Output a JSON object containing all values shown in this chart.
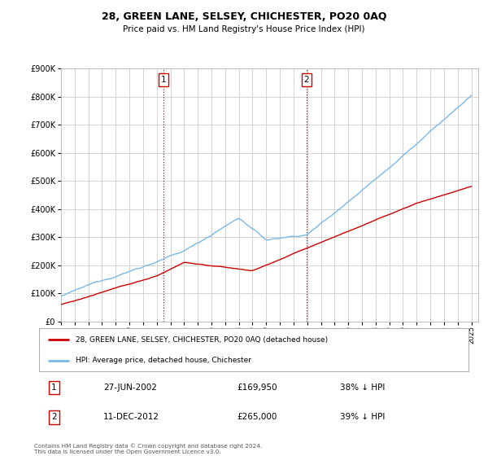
{
  "title": "28, GREEN LANE, SELSEY, CHICHESTER, PO20 0AQ",
  "subtitle": "Price paid vs. HM Land Registry's House Price Index (HPI)",
  "hpi_color": "#7ab8e8",
  "price_color": "#cc0000",
  "vline_color": "#cc0000",
  "background_color": "#ffffff",
  "grid_color": "#cccccc",
  "ylim": [
    0,
    900000
  ],
  "yticks": [
    0,
    100000,
    200000,
    300000,
    400000,
    500000,
    600000,
    700000,
    800000,
    900000
  ],
  "purchase1_date_x": 2002.49,
  "purchase1_label": "1",
  "purchase2_date_x": 2012.95,
  "purchase2_label": "2",
  "legend_house_label": "28, GREEN LANE, SELSEY, CHICHESTER, PO20 0AQ (detached house)",
  "legend_hpi_label": "HPI: Average price, detached house, Chichester",
  "table_row1": [
    "1",
    "27-JUN-2002",
    "£169,950",
    "38% ↓ HPI"
  ],
  "table_row2": [
    "2",
    "11-DEC-2012",
    "£265,000",
    "39% ↓ HPI"
  ],
  "footer": "Contains HM Land Registry data © Crown copyright and database right 2024.\nThis data is licensed under the Open Government Licence v3.0.",
  "xmin": 1995.0,
  "xmax": 2025.5
}
